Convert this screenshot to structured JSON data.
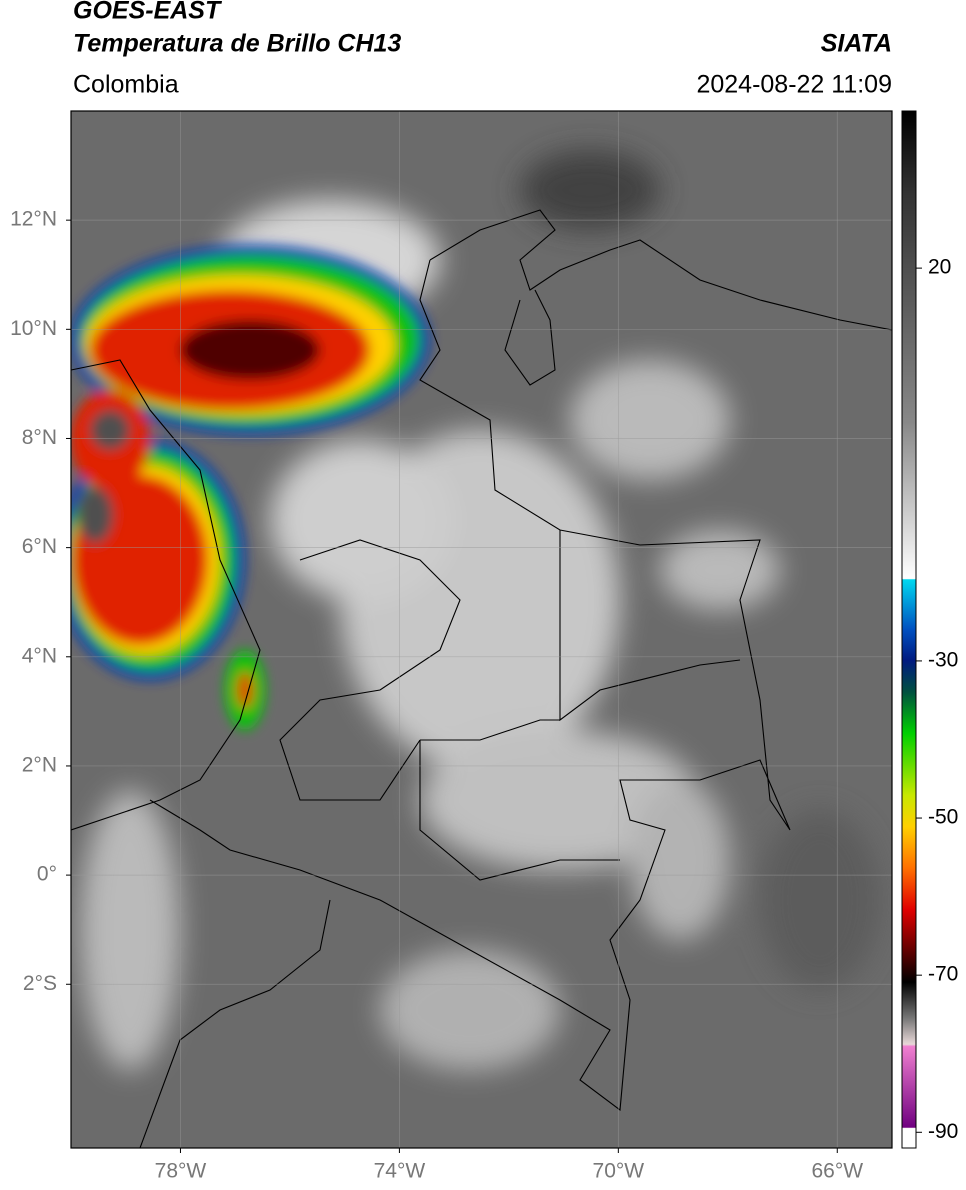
{
  "header": {
    "title": "GOES-EAST",
    "subtitle": "Temperatura de Brillo CH13",
    "region": "Colombia",
    "source": "SIATA",
    "timestamp": "2024-08-22 11:09"
  },
  "map": {
    "xlim": [
      -80,
      -65
    ],
    "ylim": [
      -5,
      14
    ],
    "xticks": [
      {
        "value": -78,
        "label": "78°W"
      },
      {
        "value": -74,
        "label": "74°W"
      },
      {
        "value": -70,
        "label": "70°W"
      },
      {
        "value": -66,
        "label": "66°W"
      }
    ],
    "yticks": [
      {
        "value": 12,
        "label": "12°N"
      },
      {
        "value": 10,
        "label": "10°N"
      },
      {
        "value": 8,
        "label": "8°N"
      },
      {
        "value": 6,
        "label": "6°N"
      },
      {
        "value": 4,
        "label": "4°N"
      },
      {
        "value": 2,
        "label": "2°N"
      },
      {
        "value": 0,
        "label": "0°"
      },
      {
        "value": -2,
        "label": "2°S"
      }
    ]
  },
  "colorbar": {
    "lim": [
      -92,
      40
    ],
    "ticks": [
      20,
      -30,
      -50,
      -70,
      -90
    ]
  }
}
